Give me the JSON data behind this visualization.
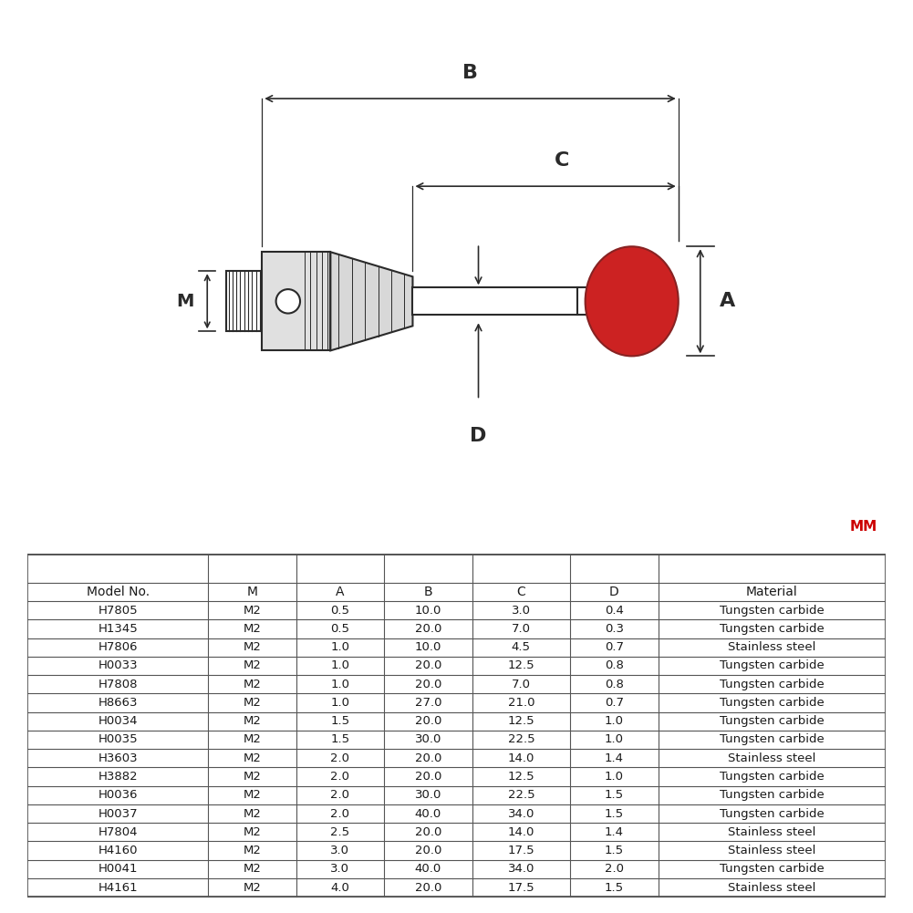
{
  "table_data": [
    [
      "Model No.",
      "M",
      "A",
      "B",
      "C",
      "D",
      "Material"
    ],
    [
      "H7805",
      "M2",
      "0.5",
      "10.0",
      "3.0",
      "0.4",
      "Tungsten carbide"
    ],
    [
      "H1345",
      "M2",
      "0.5",
      "20.0",
      "7.0",
      "0.3",
      "Tungsten carbide"
    ],
    [
      "H7806",
      "M2",
      "1.0",
      "10.0",
      "4.5",
      "0.7",
      "Stainless steel"
    ],
    [
      "H0033",
      "M2",
      "1.0",
      "20.0",
      "12.5",
      "0.8",
      "Tungsten carbide"
    ],
    [
      "H7808",
      "M2",
      "1.0",
      "20.0",
      "7.0",
      "0.8",
      "Tungsten carbide"
    ],
    [
      "H8663",
      "M2",
      "1.0",
      "27.0",
      "21.0",
      "0.7",
      "Tungsten carbide"
    ],
    [
      "H0034",
      "M2",
      "1.5",
      "20.0",
      "12.5",
      "1.0",
      "Tungsten carbide"
    ],
    [
      "H0035",
      "M2",
      "1.5",
      "30.0",
      "22.5",
      "1.0",
      "Tungsten carbide"
    ],
    [
      "H3603",
      "M2",
      "2.0",
      "20.0",
      "14.0",
      "1.4",
      "Stainless steel"
    ],
    [
      "H3882",
      "M2",
      "2.0",
      "20.0",
      "12.5",
      "1.0",
      "Tungsten carbide"
    ],
    [
      "H0036",
      "M2",
      "2.0",
      "30.0",
      "22.5",
      "1.5",
      "Tungsten carbide"
    ],
    [
      "H0037",
      "M2",
      "2.0",
      "40.0",
      "34.0",
      "1.5",
      "Tungsten carbide"
    ],
    [
      "H7804",
      "M2",
      "2.5",
      "20.0",
      "14.0",
      "1.4",
      "Stainless steel"
    ],
    [
      "H4160",
      "M2",
      "3.0",
      "20.0",
      "17.5",
      "1.5",
      "Stainless steel"
    ],
    [
      "H0041",
      "M2",
      "3.0",
      "40.0",
      "34.0",
      "2.0",
      "Tungsten carbide"
    ],
    [
      "H4161",
      "M2",
      "4.0",
      "20.0",
      "17.5",
      "1.5",
      "Stainless steel"
    ]
  ],
  "background_color": "#ffffff",
  "line_color": "#2a2a2a",
  "text_color": "#1a1a1a",
  "mm_color": "#cc0000",
  "ball_color": "#cc2222",
  "ball_edge_color": "#882222"
}
